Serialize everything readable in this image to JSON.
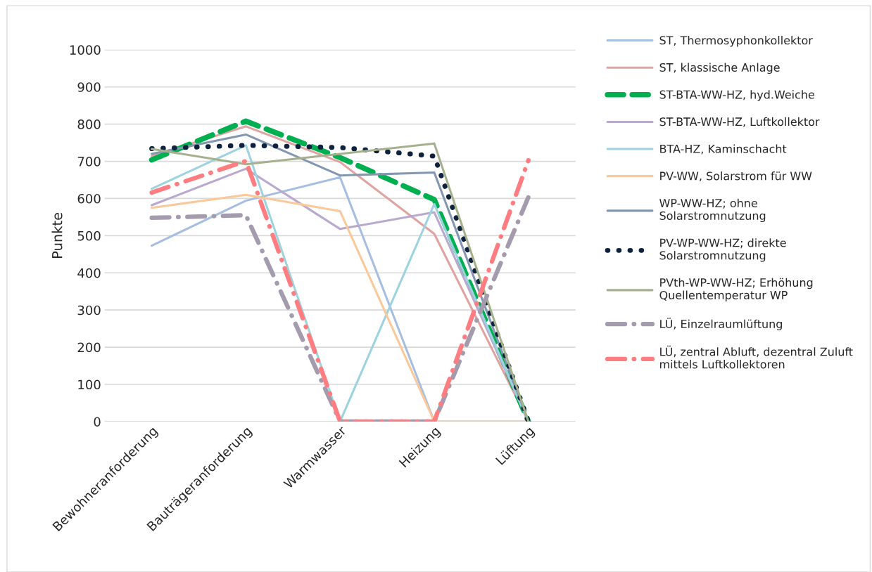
{
  "chart_data": {
    "type": "line",
    "ylabel": "Punkte",
    "categories": [
      "Bewohneranforderung",
      "Bauträgeranforderung",
      "Warmwasser",
      "Heizung",
      "Lüftung"
    ],
    "ylim": [
      0,
      1000
    ],
    "yticks": [
      0,
      100,
      200,
      300,
      400,
      500,
      600,
      700,
      800,
      900,
      1000
    ],
    "grid": "y",
    "legend": "right",
    "marker": "none",
    "series": [
      {
        "name": "ST, Thermosyphonkollektor",
        "color": "#a6bfe0",
        "line_style": "solid",
        "values": [
          473,
          594,
          657,
          0,
          0
        ]
      },
      {
        "name": "ST, klassische Anlage",
        "color": "#dfa3a0",
        "line_style": "solid",
        "values": [
          714,
          794,
          698,
          505,
          0
        ]
      },
      {
        "name": "ST-BTA-WW-HZ, hyd.Weiche",
        "color": "#00b050",
        "line_style": "dashed",
        "values": [
          704,
          808,
          710,
          597,
          0
        ]
      },
      {
        "name": "ST-BTA-WW-HZ, Luftkollektor",
        "color": "#b9a9cf",
        "line_style": "solid",
        "values": [
          582,
          680,
          518,
          563,
          0
        ]
      },
      {
        "name": "BTA-HZ, Kaminschacht",
        "color": "#9dd3df",
        "line_style": "solid",
        "values": [
          626,
          743,
          0,
          585,
          0
        ]
      },
      {
        "name": "PV-WW, Solarstrom für WW",
        "color": "#fac99a",
        "line_style": "solid",
        "values": [
          575,
          610,
          566,
          0,
          0
        ]
      },
      {
        "name": "WP-WW-HZ; ohne\nSolarstromnutzung",
        "color": "#8497b0",
        "line_style": "solid",
        "values": [
          720,
          772,
          662,
          670,
          0
        ]
      },
      {
        "name": "PV-WP-WW-HZ; direkte\nSolarstromnutzung",
        "color": "#0e213d",
        "line_style": "dotted",
        "values": [
          734,
          743,
          737,
          714,
          0
        ]
      },
      {
        "name": "PVth-WP-WW-HZ; Erhöhung\nQuellentemperatur WP",
        "color": "#a5b08c",
        "line_style": "solid",
        "values": [
          733,
          692,
          720,
          748,
          0
        ]
      },
      {
        "name": "LÜ, Einzelraumlüftung",
        "color": "#a59bae",
        "line_style": "dashdot",
        "values": [
          548,
          555,
          0,
          0,
          604
        ]
      },
      {
        "name": "LÜ, zentral Abluft, dezentral Zuluft\nmittels Luftkollektoren",
        "color": "#ff7c80",
        "line_style": "dashdot",
        "values": [
          616,
          701,
          0,
          0,
          703
        ]
      }
    ]
  }
}
